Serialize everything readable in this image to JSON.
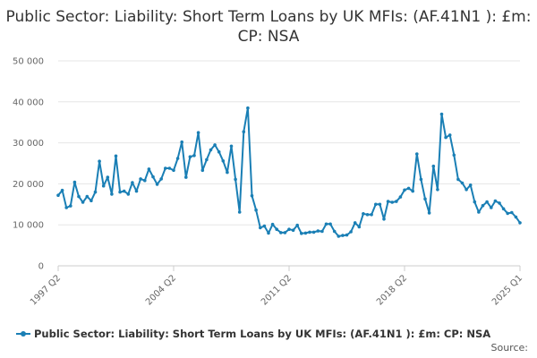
{
  "chart_data": {
    "type": "line",
    "title": "Public Sector: Liability: Short Term Loans by UK MFIs: (AF.41N1 ): £m: CP: NSA",
    "xlabel": "",
    "ylabel": "",
    "ylim": [
      0,
      50000
    ],
    "yticks": [
      "0",
      "10 000",
      "20 000",
      "30 000",
      "40 000",
      "50 000"
    ],
    "xticks": [
      "1997 Q2",
      "2004 Q2",
      "2011 Q2",
      "2018 Q2",
      "2025 Q1"
    ],
    "grid": true,
    "legend_position": "bottom",
    "color": "#1a7fb5",
    "x_start": "1997 Q2",
    "x_end": "2025 Q1",
    "series": [
      {
        "name": "Public Sector: Liability: Short Term Loans by UK MFIs: (AF.41N1 ): £m: CP: NSA",
        "values": [
          17200,
          18400,
          14200,
          14600,
          20400,
          16900,
          15500,
          16900,
          15900,
          18000,
          25500,
          19500,
          21600,
          17500,
          26800,
          18000,
          18200,
          17500,
          20300,
          18200,
          21200,
          20800,
          23600,
          21700,
          19900,
          21200,
          23800,
          23800,
          23300,
          26200,
          30200,
          21600,
          26600,
          26900,
          32500,
          23300,
          25900,
          28300,
          29500,
          27800,
          25600,
          22800,
          29200,
          21100,
          13100,
          32700,
          38500,
          17100,
          13600,
          9300,
          9700,
          8000,
          10100,
          8900,
          8100,
          8100,
          8900,
          8700,
          9900,
          7900,
          8000,
          8200,
          8200,
          8500,
          8400,
          10200,
          10200,
          8400,
          7200,
          7400,
          7500,
          8300,
          10500,
          9500,
          12700,
          12500,
          12500,
          15000,
          15000,
          11400,
          15700,
          15500,
          15700,
          16800,
          18500,
          18900,
          18200,
          27300,
          21100,
          16300,
          12900,
          24300,
          18600,
          37000,
          31300,
          31900,
          27000,
          21100,
          20200,
          18600,
          19700,
          15600,
          13100,
          14700,
          15600,
          14200,
          15800,
          15300,
          13900,
          12800,
          13000,
          11900,
          10500
        ]
      }
    ]
  },
  "legend": {
    "label": "Public Sector: Liability: Short Term Loans by UK MFIs: (AF.41N1 ): £m: CP: NSA"
  },
  "source_label": "Source:"
}
